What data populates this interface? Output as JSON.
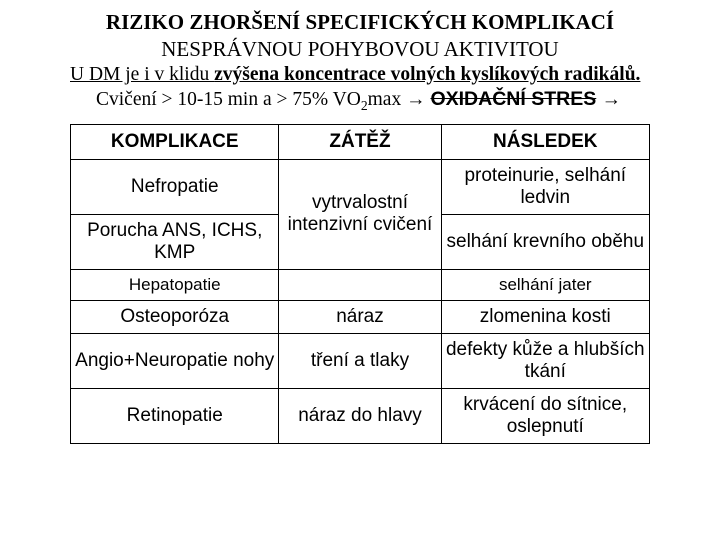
{
  "header": {
    "title1": "RIZIKO ZHORŠENÍ SPECIFICKÝCH KOMPLIKACÍ",
    "title2": "NESPRÁVNOU POHYBOVOU AKTIVITOU",
    "line3_pre": "U DM je i v klidu ",
    "line3_bold": "zvýšena koncentrace volných kyslíkových radikálů.",
    "line4_pre": "Cvičení > 10-15 min a > 75% VO",
    "line4_sub": "2",
    "line4_mid": "max → ",
    "line4_strike": "OXIDAČNÍ STRES",
    "line4_post": " →"
  },
  "table": {
    "head": {
      "c1": "KOMPLIKACE",
      "c2": "ZÁTĚŽ",
      "c3": "NÁSLEDEK"
    },
    "r1": {
      "c1": "Nefropatie",
      "c3": "proteinurie, selhání ledvin"
    },
    "r2": {
      "c1": "Porucha ANS, ICHS, KMP",
      "c2": "vytrvalostní intenzivní cvičení",
      "c3": "selhání krevního oběhu"
    },
    "r3": {
      "c1": "Hepatopatie",
      "c3": "selhání jater"
    },
    "r4": {
      "c1": "Osteoporóza",
      "c2": "náraz",
      "c3": "zlomenina kosti"
    },
    "r5": {
      "c1": "Angio+Neuropatie nohy",
      "c2": "tření a tlaky",
      "c3": "defekty kůže a hlubších tkání"
    },
    "r6": {
      "c1": "Retinopatie",
      "c2": "náraz do hlavy",
      "c3": "krvácení do sítnice, oslepnutí"
    }
  }
}
